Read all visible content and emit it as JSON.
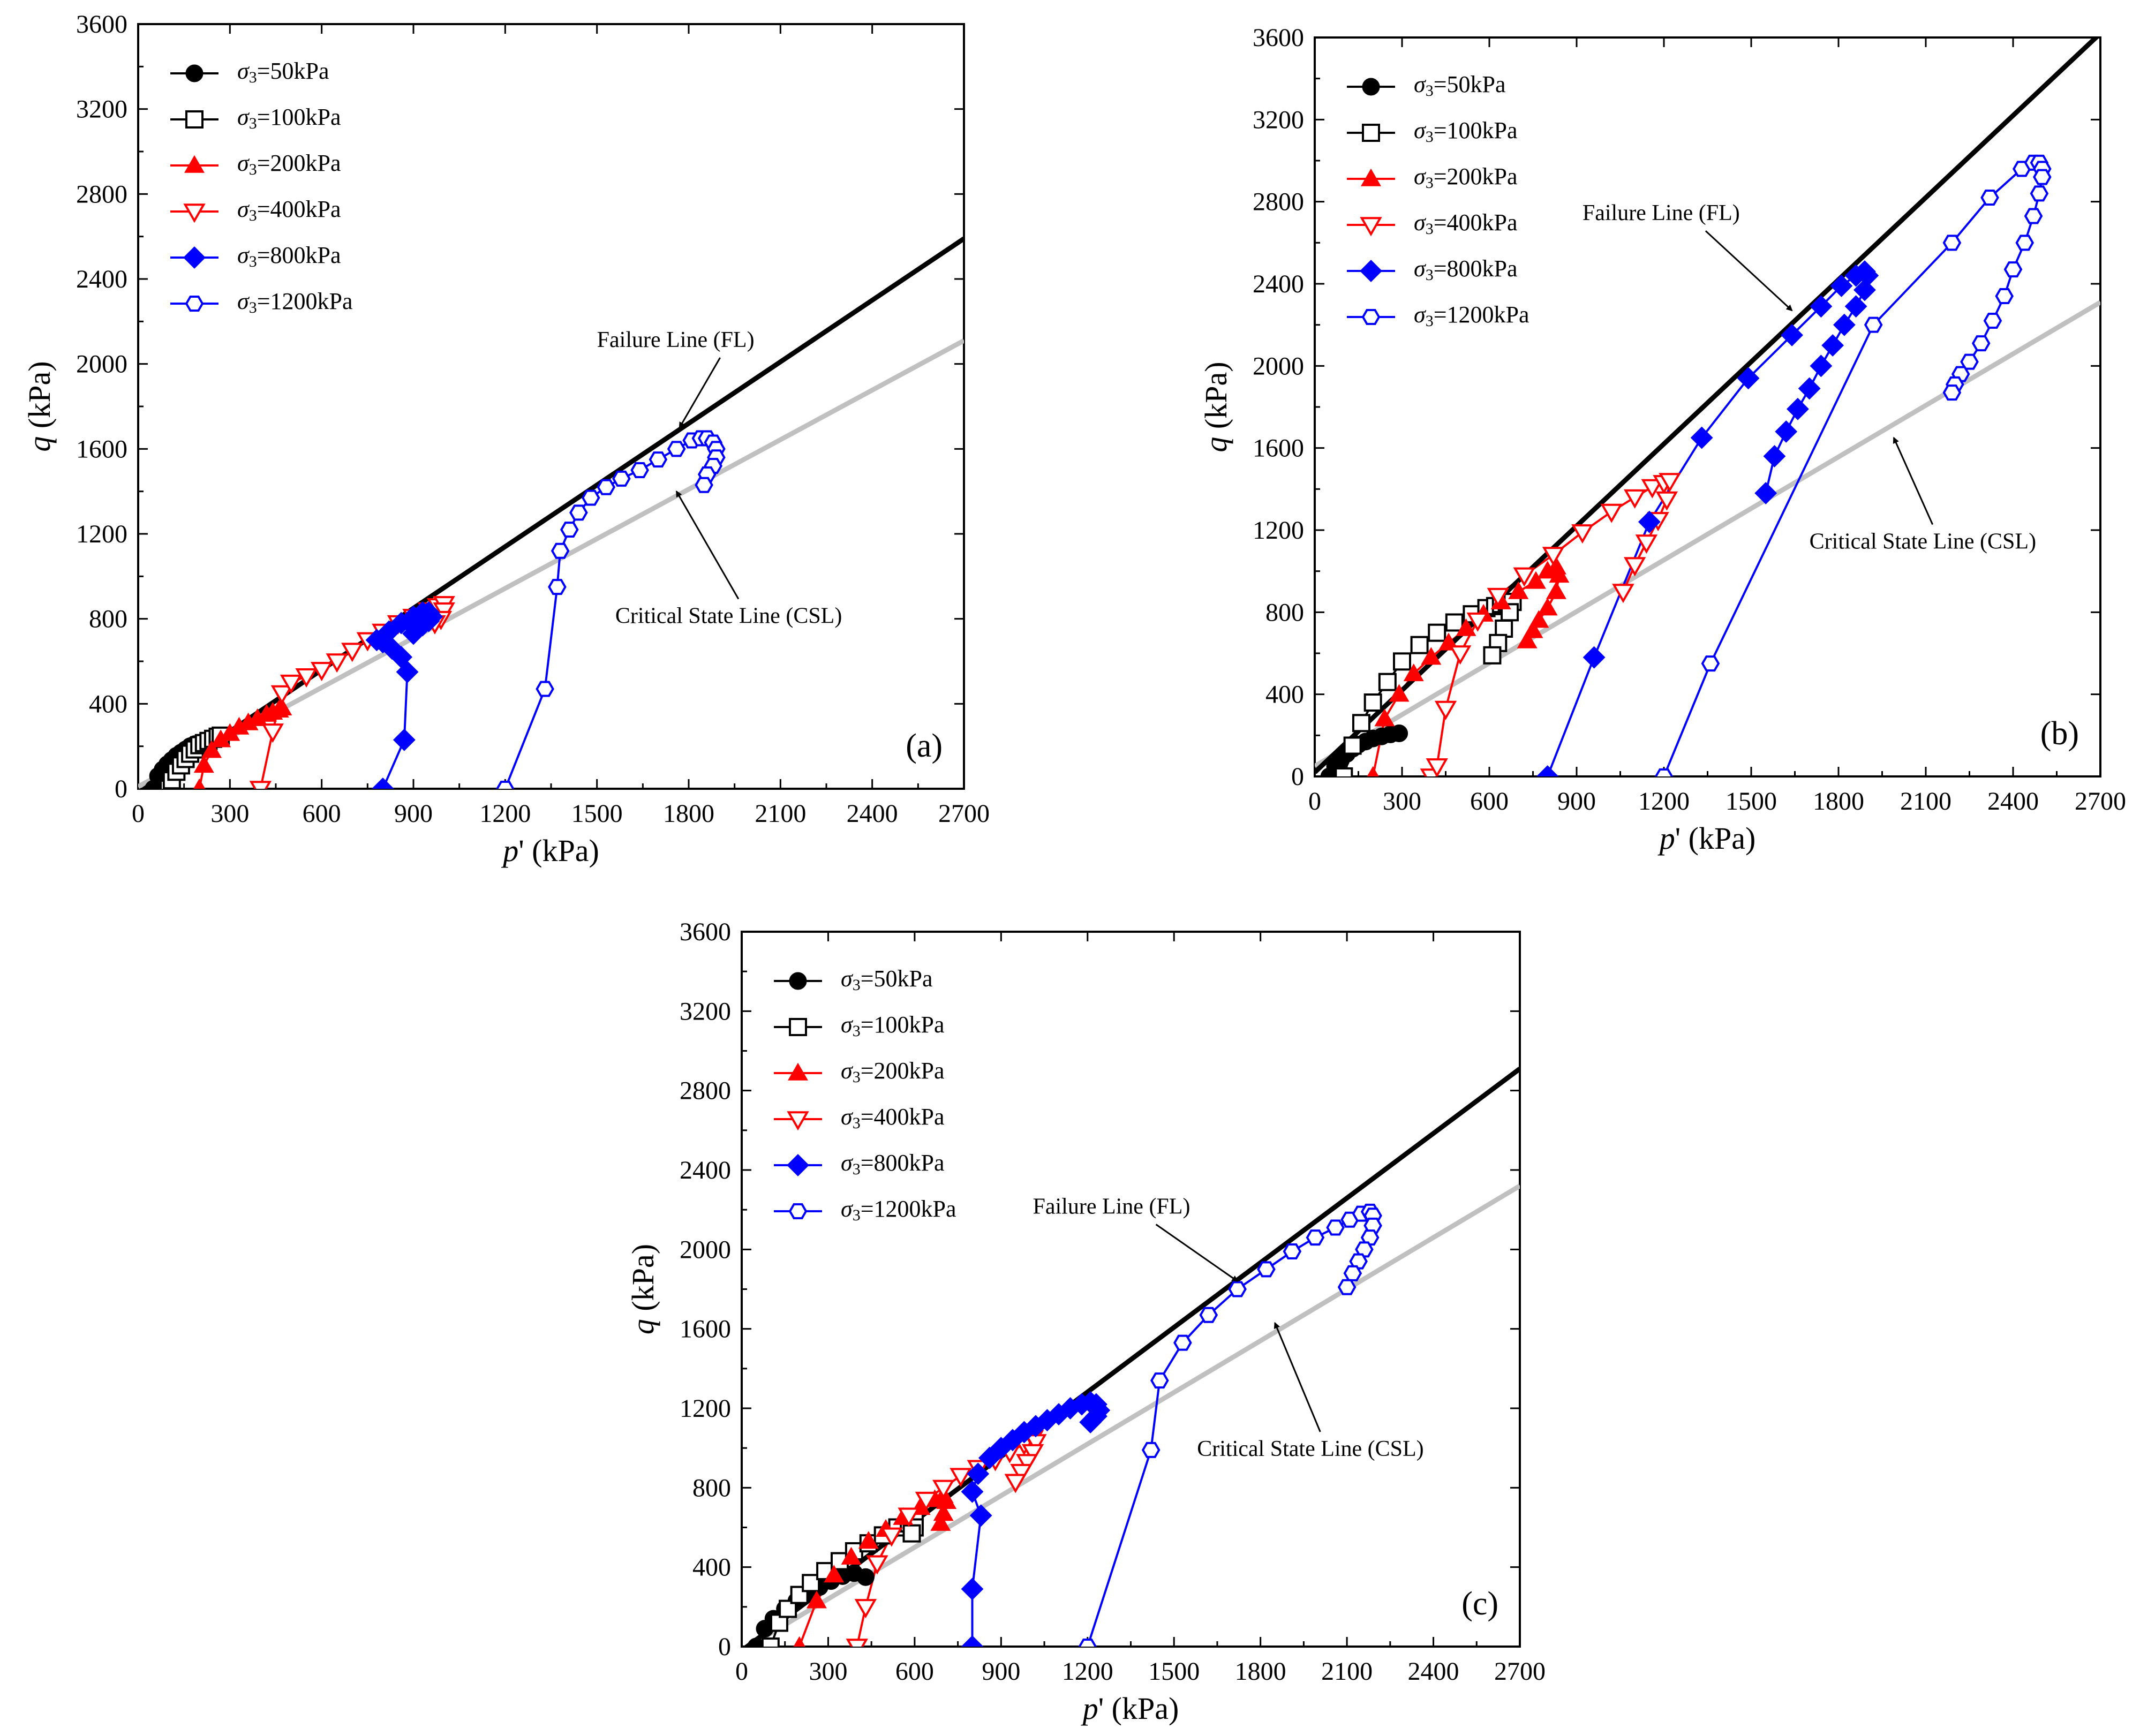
{
  "figure": {
    "panel_label_a": "(a)",
    "panel_label_b": "(b)",
    "panel_label_c": "(c)"
  },
  "chart_data": [
    {
      "type": "scatter",
      "panel": "(a)",
      "xlabel": "p' (kPa)",
      "ylabel": "q (kPa)",
      "xlim": [
        0,
        2700
      ],
      "ylim": [
        0,
        3600
      ],
      "xticks": [
        0,
        300,
        600,
        900,
        1200,
        1500,
        1800,
        2100,
        2400,
        2700
      ],
      "yticks": [
        0,
        400,
        800,
        1200,
        1600,
        2000,
        2400,
        2800,
        3200,
        3600
      ],
      "legend_position": "top-left",
      "lines": [
        {
          "name": "Failure Line (FL)",
          "x": [
            0,
            2700
          ],
          "y": [
            -20,
            2590
          ],
          "color": "#000000"
        },
        {
          "name": "Critical State Line (CSL)",
          "x": [
            0,
            2700
          ],
          "y": [
            10,
            2110
          ],
          "color": "#c0c0c0"
        }
      ],
      "annotations": [
        {
          "text": "Failure Line (FL)",
          "x": 1500,
          "y": 2080,
          "target_x": 1770,
          "target_y": 1700
        },
        {
          "text": "Critical State Line (CSL)",
          "x": 1560,
          "y": 780,
          "target_x": 1760,
          "target_y": 1400
        }
      ],
      "series": [
        {
          "name": "σ3=50kPa",
          "marker": "circle-filled",
          "color": "#000000",
          "x": [
            50,
            65,
            80,
            95,
            110,
            125,
            140,
            155,
            170,
            185,
            200,
            210
          ],
          "y": [
            0,
            60,
            90,
            115,
            135,
            155,
            170,
            185,
            200,
            210,
            215,
            220
          ]
        },
        {
          "name": "σ3=100kPa",
          "marker": "square-open",
          "color": "#000000",
          "x": [
            100,
            110,
            125,
            140,
            155,
            170,
            185,
            200,
            215,
            230,
            245,
            260,
            270
          ],
          "y": [
            0,
            40,
            80,
            110,
            140,
            165,
            185,
            205,
            215,
            225,
            235,
            245,
            250
          ]
        },
        {
          "name": "σ3=200kPa",
          "marker": "triangle-up-filled",
          "color": "#ff0000",
          "x": [
            200,
            215,
            240,
            270,
            300,
            330,
            360,
            390,
            420,
            440,
            460,
            470
          ],
          "y": [
            0,
            110,
            180,
            230,
            260,
            290,
            310,
            330,
            350,
            360,
            370,
            380
          ]
        },
        {
          "name": "σ3=400kPa",
          "marker": "triangle-down-open",
          "color": "#ff0000",
          "x": [
            400,
            440,
            470,
            500,
            550,
            600,
            650,
            700,
            750,
            800,
            850,
            900,
            950,
            980,
            1000,
            1000,
            990,
            970
          ],
          "y": [
            0,
            270,
            450,
            500,
            530,
            560,
            600,
            650,
            700,
            740,
            780,
            810,
            840,
            860,
            870,
            840,
            800,
            780
          ]
        },
        {
          "name": "σ3=800kPa",
          "marker": "diamond-filled",
          "color": "#0000ff",
          "x": [
            800,
            870,
            880,
            860,
            830,
            800,
            780,
            820,
            860,
            900,
            930,
            950,
            960,
            950,
            930,
            910,
            900
          ],
          "y": [
            0,
            230,
            550,
            620,
            660,
            690,
            700,
            740,
            780,
            810,
            830,
            830,
            810,
            790,
            770,
            750,
            730
          ]
        },
        {
          "name": "σ3=1200kPa",
          "marker": "hexagon-open",
          "color": "#0000ff",
          "x": [
            1200,
            1330,
            1370,
            1380,
            1410,
            1440,
            1480,
            1530,
            1580,
            1640,
            1700,
            1760,
            1810,
            1840,
            1860,
            1880,
            1890,
            1890,
            1880,
            1860,
            1850
          ],
          "y": [
            0,
            470,
            950,
            1120,
            1220,
            1300,
            1370,
            1420,
            1460,
            1500,
            1550,
            1600,
            1640,
            1650,
            1650,
            1630,
            1600,
            1560,
            1520,
            1480,
            1430
          ]
        }
      ]
    },
    {
      "type": "scatter",
      "panel": "(b)",
      "xlabel": "p' (kPa)",
      "ylabel": "q (kPa)",
      "xlim": [
        0,
        2700
      ],
      "ylim": [
        0,
        3600
      ],
      "xticks": [
        0,
        300,
        600,
        900,
        1200,
        1500,
        1800,
        2100,
        2400,
        2700
      ],
      "yticks": [
        0,
        400,
        800,
        1200,
        1600,
        2000,
        2400,
        2800,
        3200,
        3600
      ],
      "legend_position": "top-left",
      "lines": [
        {
          "name": "Failure Line (FL)",
          "x": [
            0,
            2700
          ],
          "y": [
            20,
            3620
          ],
          "color": "#000000"
        },
        {
          "name": "Critical State Line (CSL)",
          "x": [
            0,
            2700
          ],
          "y": [
            50,
            2310
          ],
          "color": "#c0c0c0"
        }
      ],
      "annotations": [
        {
          "text": "Failure Line (FL)",
          "x": 920,
          "y": 2710,
          "target_x": 1640,
          "target_y": 2270
        },
        {
          "text": "Critical State Line (CSL)",
          "x": 1700,
          "y": 1110,
          "target_x": 1990,
          "target_y": 1650
        }
      ],
      "series": [
        {
          "name": "σ3=50kPa",
          "marker": "circle-filled",
          "color": "#000000",
          "x": [
            50,
            70,
            90,
            110,
            130,
            150,
            175,
            200,
            230,
            260,
            290
          ],
          "y": [
            0,
            50,
            80,
            110,
            135,
            155,
            170,
            185,
            195,
            205,
            210
          ]
        },
        {
          "name": "σ3=100kPa",
          "marker": "square-open",
          "color": "#000000",
          "x": [
            100,
            130,
            160,
            200,
            250,
            300,
            360,
            420,
            480,
            540,
            590,
            620,
            640,
            660,
            680,
            670,
            650,
            630,
            610
          ],
          "y": [
            0,
            150,
            260,
            360,
            460,
            560,
            640,
            700,
            750,
            790,
            820,
            830,
            840,
            850,
            850,
            800,
            720,
            650,
            590
          ]
        },
        {
          "name": "σ3=200kPa",
          "marker": "triangle-up-filled",
          "color": "#ff0000",
          "x": [
            200,
            240,
            290,
            340,
            400,
            460,
            520,
            580,
            640,
            700,
            760,
            800,
            830,
            840,
            830,
            800,
            770,
            750,
            730
          ],
          "y": [
            0,
            280,
            400,
            500,
            580,
            650,
            720,
            790,
            850,
            900,
            950,
            1000,
            1020,
            980,
            900,
            820,
            760,
            710,
            660
          ]
        },
        {
          "name": "σ3=400kPa",
          "marker": "triangle-down-open",
          "color": "#ff0000",
          "x": [
            400,
            420,
            450,
            500,
            560,
            630,
            720,
            820,
            920,
            1020,
            1100,
            1160,
            1200,
            1220,
            1210,
            1180,
            1140,
            1100,
            1060
          ],
          "y": [
            0,
            50,
            330,
            600,
            760,
            880,
            980,
            1080,
            1190,
            1290,
            1360,
            1410,
            1430,
            1440,
            1350,
            1250,
            1140,
            1030,
            900
          ]
        },
        {
          "name": "σ3=800kPa",
          "marker": "diamond-filled",
          "color": "#0000ff",
          "x": [
            800,
            960,
            1150,
            1330,
            1490,
            1640,
            1740,
            1810,
            1860,
            1890,
            1900,
            1890,
            1860,
            1820,
            1780,
            1740,
            1700,
            1660,
            1620,
            1580,
            1550
          ],
          "y": [
            0,
            580,
            1240,
            1650,
            1940,
            2150,
            2290,
            2390,
            2440,
            2460,
            2440,
            2370,
            2290,
            2200,
            2100,
            2000,
            1890,
            1790,
            1680,
            1560,
            1380
          ]
        },
        {
          "name": "σ3=1200kPa",
          "marker": "hexagon-open",
          "color": "#0000ff",
          "x": [
            1200,
            1360,
            1920,
            2190,
            2320,
            2430,
            2470,
            2490,
            2500,
            2500,
            2490,
            2470,
            2440,
            2400,
            2370,
            2330,
            2290,
            2250,
            2220,
            2200,
            2190
          ],
          "y": [
            0,
            550,
            2200,
            2600,
            2820,
            2960,
            2990,
            2990,
            2960,
            2920,
            2840,
            2730,
            2600,
            2470,
            2340,
            2220,
            2110,
            2020,
            1960,
            1910,
            1870
          ]
        }
      ]
    },
    {
      "type": "scatter",
      "panel": "(c)",
      "xlabel": "p' (kPa)",
      "ylabel": "q (kPa)",
      "xlim": [
        0,
        2700
      ],
      "ylim": [
        0,
        3600
      ],
      "xticks": [
        0,
        300,
        600,
        900,
        1200,
        1500,
        1800,
        2100,
        2400,
        2700
      ],
      "yticks": [
        0,
        400,
        800,
        1200,
        1600,
        2000,
        2400,
        2800,
        3200,
        3600
      ],
      "legend_position": "top-left",
      "lines": [
        {
          "name": "Failure Line (FL)",
          "x": [
            0,
            2700
          ],
          "y": [
            -20,
            2910
          ],
          "color": "#000000"
        },
        {
          "name": "Critical State Line (CSL)",
          "x": [
            0,
            2700
          ],
          "y": [
            -20,
            2320
          ],
          "color": "#c0c0c0"
        }
      ],
      "annotations": [
        {
          "text": "Failure Line (FL)",
          "x": 1010,
          "y": 2180,
          "target_x": 1720,
          "target_y": 1840
        },
        {
          "text": "Critical State Line (CSL)",
          "x": 1580,
          "y": 960,
          "target_x": 1850,
          "target_y": 1630
        }
      ],
      "series": [
        {
          "name": "σ3=50kPa",
          "marker": "circle-filled",
          "color": "#000000",
          "x": [
            50,
            80,
            110,
            150,
            190,
            230,
            270,
            310,
            350,
            390,
            430
          ],
          "y": [
            0,
            90,
            140,
            190,
            230,
            270,
            300,
            330,
            355,
            370,
            350
          ]
        },
        {
          "name": "σ3=100kPa",
          "marker": "square-open",
          "color": "#000000",
          "x": [
            100,
            130,
            160,
            200,
            240,
            290,
            340,
            390,
            440,
            490,
            540,
            580,
            600,
            600,
            590
          ],
          "y": [
            0,
            120,
            190,
            260,
            320,
            380,
            430,
            480,
            520,
            560,
            600,
            620,
            630,
            600,
            570
          ]
        },
        {
          "name": "σ3=200kPa",
          "marker": "triangle-up-filled",
          "color": "#ff0000",
          "x": [
            200,
            260,
            320,
            380,
            440,
            500,
            560,
            620,
            670,
            700,
            710,
            700,
            690
          ],
          "y": [
            0,
            230,
            360,
            450,
            530,
            590,
            650,
            700,
            740,
            760,
            730,
            670,
            620
          ]
        },
        {
          "name": "σ3=400kPa",
          "marker": "triangle-down-open",
          "color": "#ff0000",
          "x": [
            400,
            430,
            470,
            520,
            580,
            640,
            700,
            760,
            820,
            880,
            930,
            980,
            1010,
            1020,
            1010,
            990,
            970,
            950
          ],
          "y": [
            0,
            200,
            420,
            560,
            660,
            740,
            800,
            860,
            900,
            940,
            980,
            1020,
            1050,
            1030,
            980,
            930,
            880,
            830
          ]
        },
        {
          "name": "σ3=800kPa",
          "marker": "diamond-filled",
          "color": "#0000ff",
          "x": [
            800,
            800,
            830,
            800,
            820,
            860,
            900,
            940,
            980,
            1020,
            1060,
            1100,
            1140,
            1180,
            1210,
            1230,
            1240,
            1230,
            1210
          ],
          "y": [
            0,
            290,
            660,
            780,
            870,
            950,
            1000,
            1040,
            1080,
            1110,
            1140,
            1170,
            1200,
            1220,
            1230,
            1220,
            1190,
            1160,
            1130
          ]
        },
        {
          "name": "σ3=1200kPa",
          "marker": "hexagon-open",
          "color": "#0000ff",
          "x": [
            1200,
            1420,
            1450,
            1530,
            1620,
            1720,
            1820,
            1910,
            1990,
            2060,
            2110,
            2150,
            2180,
            2190,
            2190,
            2180,
            2160,
            2140,
            2120,
            2100
          ],
          "y": [
            0,
            990,
            1340,
            1530,
            1670,
            1800,
            1900,
            1990,
            2060,
            2110,
            2150,
            2180,
            2190,
            2170,
            2120,
            2060,
            2000,
            1940,
            1880,
            1810
          ]
        }
      ]
    }
  ]
}
